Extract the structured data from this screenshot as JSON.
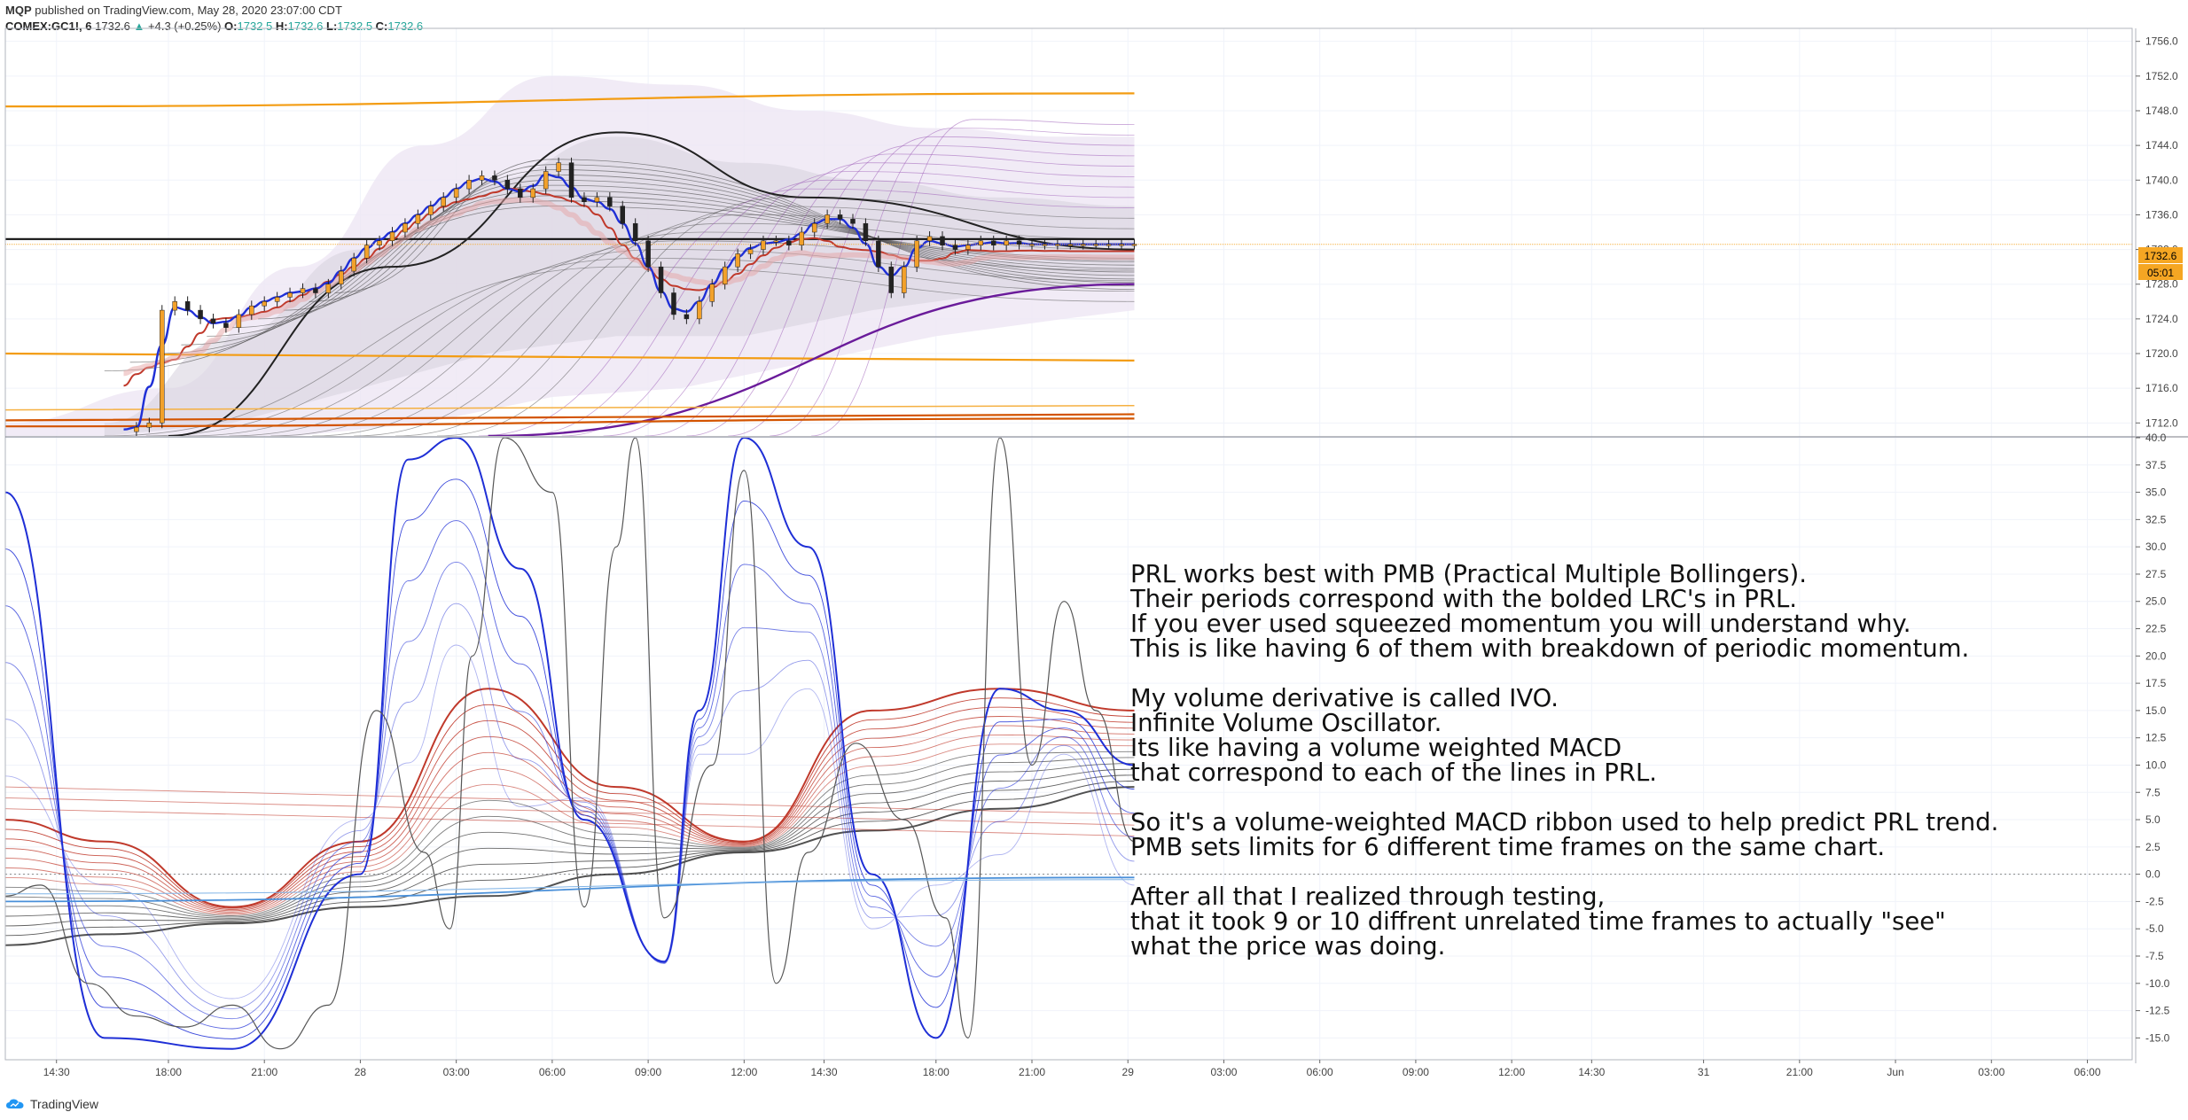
{
  "header": {
    "author": "MQP",
    "published": "published on TradingView.com, May 28, 2020 23:07:00 CDT",
    "symbol": "COMEX:GC1!, 6",
    "last": "1732.6",
    "change": "+4.3 (+0.25%)",
    "o_label": "O:",
    "o_value": "1732.5",
    "h_label": "H:",
    "h_value": "1732.6",
    "l_label": "L:",
    "l_value": "1732.5",
    "c_label": "C:",
    "c_value": "1732.6"
  },
  "price_tag": {
    "price": "1732.6",
    "countdown": "05:01"
  },
  "annotation": {
    "lines": [
      "PRL works best with PMB (Practical Multiple Bollingers).",
      "Their periods correspond with the bolded LRC's in PRL.",
      "If you ever used squeezed momentum you will understand why.",
      "This is like having 6 of them with breakdown of periodic momentum.",
      "",
      "My volume derivative is called IVO.",
      "Infinite Volume Oscillator.",
      "Its like having a volume weighted MACD",
      "that correspond to each of the lines in PRL.",
      "",
      "So it's a volume-weighted MACD ribbon used to help predict PRL trend.",
      "PMB sets limits for 6 different time frames on the same chart.",
      "",
      "After all that I realized through testing,",
      "that it took 9 or 10 diffrent unrelated time frames to actually \"see\"",
      "what the price was doing."
    ]
  },
  "footer": {
    "brand": "TradingView"
  },
  "colors": {
    "candle_up": "#f2a12b",
    "candle_down": "#222222",
    "blue": "#1f2fd6",
    "red": "#c0392b",
    "orange": "#f39c12",
    "purple": "#6a1b9a",
    "dark": "#333333",
    "price_line": "#f5b041",
    "steelblue": "#4a90d9"
  },
  "chart_data": [
    {
      "type": "line",
      "panel": "price",
      "symbol": "COMEX:GC1!",
      "y_ticks": [
        "1756.0",
        "1752.0",
        "1748.0",
        "1744.0",
        "1740.0",
        "1736.0",
        "1732.0",
        "1728.0",
        "1724.0",
        "1720.0",
        "1716.0",
        "1712.0"
      ],
      "ylim": [
        1710.5,
        1757.5
      ],
      "last_price": 1732.6,
      "series": [
        {
          "name": "",
          "role": "price_close",
          "x": [
            16.6,
            17,
            17.4,
            17.8,
            18.2,
            18.6,
            19.0,
            19.4,
            19.8,
            20.2,
            20.6,
            21.0,
            21.4,
            21.8,
            22.2,
            22.6,
            23.0,
            23.4,
            23.8,
            24.2,
            24.6,
            25.0,
            25.4,
            25.8,
            26.2,
            26.6,
            27.0,
            27.4,
            27.8,
            28.2,
            28.6,
            29.0,
            29.4,
            29.8,
            30.2,
            30.6,
            31.0,
            31.4,
            31.8,
            32.2,
            32.6,
            33.0,
            33.4,
            33.8,
            34.2,
            34.6,
            35.0,
            35.4,
            35.8,
            36.2,
            36.6,
            37.0,
            37.4,
            37.8,
            38.2,
            38.6,
            39.0,
            39.4,
            39.8,
            40.2,
            40.6,
            41.0,
            41.4,
            41.8,
            42.2,
            42.6,
            43.0,
            43.4,
            43.8,
            44.2,
            44.6,
            45.0,
            45.4,
            45.8,
            46.2,
            46.6,
            47.0,
            47.4,
            47.8,
            48.2
          ],
          "y": [
            1711,
            1711.5,
            1712,
            1725,
            1726,
            1725,
            1724,
            1723.5,
            1723,
            1724.5,
            1725.5,
            1726,
            1726.5,
            1727,
            1727.5,
            1727,
            1728,
            1729.5,
            1731,
            1732.5,
            1733,
            1734,
            1735,
            1736,
            1737,
            1738,
            1739,
            1740,
            1740.5,
            1740,
            1739,
            1738,
            1739,
            1741,
            1742,
            1738,
            1737.5,
            1738,
            1737,
            1735,
            1733,
            1730,
            1727,
            1724.5,
            1724,
            1726,
            1728,
            1730,
            1731.5,
            1732,
            1733,
            1733,
            1732.5,
            1734,
            1735,
            1736,
            1735.5,
            1735,
            1733,
            1730,
            1727,
            1730,
            1733,
            1733.5,
            1732.5,
            1732,
            1732.5,
            1733,
            1732.5,
            1733,
            1732.6,
            1732.6,
            1732.6,
            1732.6,
            1732.6,
            1732.6,
            1732.6,
            1732.6,
            1732.6,
            1732.6
          ]
        },
        {
          "name": "",
          "role": "upper_orange_band",
          "x": [
            12.9,
            48.2
          ],
          "y": [
            1748.5,
            1750
          ]
        },
        {
          "name": "",
          "role": "lower_orange_band",
          "x": [
            12.9,
            48.2
          ],
          "y": [
            1720,
            1719.2
          ]
        },
        {
          "name": "",
          "role": "horizontal_dark_line",
          "x": [
            12.9,
            48.2
          ],
          "y": [
            1733.2,
            1733.2
          ]
        },
        {
          "name": "",
          "role": "purple_line",
          "x": [
            28.0,
            48.2
          ],
          "y": [
            1710.5,
            1728.0
          ]
        },
        {
          "name": "",
          "role": "dark_curve",
          "x": [
            18.0,
            25.0,
            32.0,
            38.0,
            48.2
          ],
          "y": [
            1710.5,
            1730,
            1745.5,
            1738,
            1732
          ]
        }
      ]
    },
    {
      "type": "line",
      "panel": "oscillator",
      "y_ticks": [
        "40.0",
        "37.5",
        "35.0",
        "32.5",
        "30.0",
        "27.5",
        "25.0",
        "22.5",
        "20.0",
        "17.5",
        "15.0",
        "12.5",
        "10.0",
        "7.5",
        "5.0",
        "2.5",
        "0.0",
        "-2.5",
        "-5.0",
        "-7.5",
        "-10.0",
        "-12.5",
        "-15.0"
      ],
      "ylim": [
        -17.0,
        40.0
      ],
      "series": [
        {
          "name": "",
          "role": "blue_fast",
          "x": [
            12.9,
            16.0,
            20.0,
            24.0,
            25.5,
            27.0,
            29.0,
            31.0,
            33.5,
            34.6,
            36.0,
            38.0,
            40.0,
            42.0,
            44.0,
            46.0,
            48.2
          ],
          "y": [
            35,
            -15,
            -16,
            0,
            38,
            40,
            28,
            5,
            -8,
            15,
            40,
            30,
            0,
            -15,
            17,
            15,
            10
          ]
        },
        {
          "name": "",
          "role": "red_ribbon_top",
          "x": [
            12.9,
            16.0,
            20.0,
            24.0,
            28.0,
            32.0,
            36.0,
            40.0,
            44.0,
            48.2
          ],
          "y": [
            5,
            3,
            -3,
            3,
            17,
            8,
            3,
            15,
            17,
            15
          ]
        },
        {
          "name": "",
          "role": "dark_ribbon_bottom",
          "x": [
            12.9,
            16.0,
            20.0,
            24.0,
            28.0,
            32.0,
            36.0,
            40.0,
            44.0,
            48.2
          ],
          "y": [
            -6.5,
            -5.5,
            -4.5,
            -3,
            -2,
            0,
            2,
            4,
            6,
            8
          ]
        },
        {
          "name": "",
          "role": "steelblue_line",
          "x": [
            12.9,
            48.2
          ],
          "y": [
            -2.5,
            -0.3
          ]
        }
      ],
      "zero_line": 0.0
    }
  ],
  "x_axis": {
    "labels": [
      "14:30",
      "18:00",
      "21:00",
      "28",
      "03:00",
      "06:00",
      "09:00",
      "12:00",
      "14:30",
      "18:00",
      "21:00",
      "29",
      "03:00",
      "06:00",
      "09:00",
      "12:00",
      "14:30",
      "31",
      "21:00",
      "Jun",
      "03:00",
      "06:00"
    ],
    "positions": [
      14.5,
      18.0,
      21.0,
      24.0,
      27.0,
      30.0,
      33.0,
      36.0,
      38.5,
      42.0,
      45.0,
      48.0,
      51.0,
      54.0,
      57.0,
      60.0,
      62.5,
      66.0,
      69.0,
      72.0,
      75.0,
      78.0
    ]
  }
}
